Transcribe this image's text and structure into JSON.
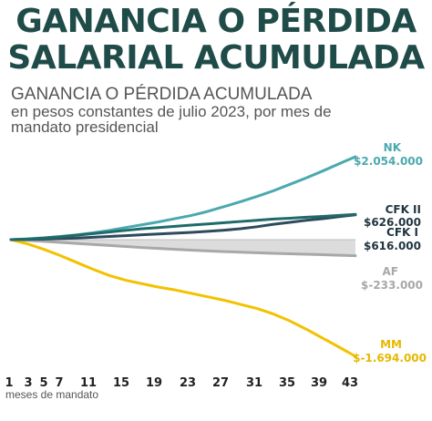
{
  "headline": {
    "line1": "GANANCIA O PÉRDIDA",
    "line2": "SALARIAL ACUMULADA"
  },
  "colors": {
    "headline": "#1f4b48",
    "NK": "#4aa9ae",
    "CFK II": "#1f6a6a",
    "CFK I": "#2e4a5c",
    "AF": "#a8a8a8",
    "MM": "#f2c200"
  },
  "chart_data": {
    "type": "line",
    "title": "GANANCIA O PÉRDIDA ACUMULADA",
    "subtitle": "en pesos constantes de julio 2023, por mes de mandato presidencial",
    "xlabel": "meses de mandato",
    "ylabel": "",
    "x_ticks": [
      1,
      3,
      5,
      7,
      11,
      15,
      19,
      23,
      27,
      31,
      35,
      39,
      43
    ],
    "xlim": [
      1,
      43
    ],
    "ylim": [
      -1694000,
      2054000
    ],
    "grid": false,
    "legend": "inline labels at line ends (right)",
    "series": [
      {
        "name": "NK",
        "value_label": "$2.054.000",
        "color": "#4aa9ae",
        "x": [
          1,
          3,
          5,
          7,
          9,
          11,
          13,
          15,
          17,
          19,
          21,
          23,
          25,
          27,
          29,
          31,
          33,
          35,
          37,
          39,
          41,
          43
        ],
        "values": [
          0,
          20000,
          45000,
          80000,
          120000,
          170000,
          230000,
          300000,
          370000,
          440000,
          520000,
          600000,
          700000,
          820000,
          940000,
          1070000,
          1210000,
          1370000,
          1530000,
          1700000,
          1880000,
          2054000
        ]
      },
      {
        "name": "CFK II",
        "value_label": "$626.000",
        "color": "#1f6a6a",
        "x": [
          1,
          3,
          5,
          7,
          9,
          11,
          13,
          15,
          17,
          19,
          21,
          23,
          25,
          27,
          29,
          31,
          33,
          35,
          37,
          39,
          41,
          43
        ],
        "values": [
          0,
          15000,
          40000,
          70000,
          110000,
          150000,
          190000,
          230000,
          270000,
          300000,
          330000,
          360000,
          390000,
          420000,
          450000,
          480000,
          510000,
          530000,
          555000,
          575000,
          600000,
          626000
        ]
      },
      {
        "name": "CFK I",
        "value_label": "$616.000",
        "color": "#2e4a5c",
        "x": [
          1,
          3,
          5,
          7,
          9,
          11,
          13,
          15,
          17,
          19,
          21,
          23,
          25,
          27,
          29,
          31,
          33,
          35,
          37,
          39,
          41,
          43
        ],
        "values": [
          0,
          5000,
          15000,
          25000,
          40000,
          60000,
          80000,
          100000,
          120000,
          140000,
          160000,
          180000,
          205000,
          235000,
          270000,
          320000,
          380000,
          430000,
          480000,
          520000,
          570000,
          616000
        ]
      },
      {
        "name": "AF",
        "value_label": "$-233.000",
        "color": "#a8a8a8",
        "x": [
          1,
          3,
          5,
          7,
          9,
          11,
          13,
          15,
          17,
          19,
          21,
          23,
          25,
          27,
          29,
          31,
          33,
          35,
          37,
          39,
          41,
          43
        ],
        "values": [
          0,
          -10000,
          -25000,
          -40000,
          -55000,
          -70000,
          -85000,
          -100000,
          -115000,
          -128000,
          -140000,
          -152000,
          -163000,
          -173000,
          -182000,
          -190000,
          -198000,
          -205000,
          -212000,
          -219000,
          -226000,
          -233000
        ]
      },
      {
        "name": "MM",
        "value_label": "$-1.694.000",
        "color": "#f2c200",
        "x": [
          1,
          3,
          5,
          7,
          9,
          11,
          13,
          15,
          17,
          19,
          21,
          23,
          25,
          27,
          29,
          31,
          33,
          35,
          37,
          39,
          41,
          43
        ],
        "values": [
          0,
          -60000,
          -140000,
          -230000,
          -330000,
          -430000,
          -520000,
          -590000,
          -640000,
          -690000,
          -730000,
          -780000,
          -830000,
          -880000,
          -940000,
          -1000000,
          -1080000,
          -1180000,
          -1300000,
          -1430000,
          -1560000,
          -1694000
        ]
      }
    ]
  }
}
